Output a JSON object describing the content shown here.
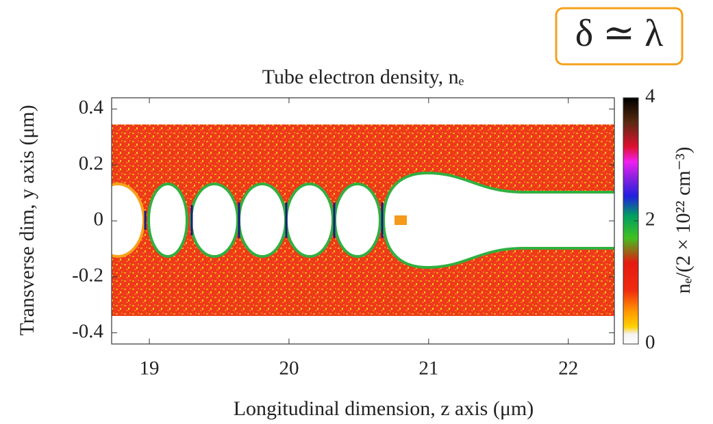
{
  "chart_data": {
    "type": "heatmap",
    "title": "Tube electron density, nₑ",
    "x_label": "Longitudinal dimension, z axis (μm)",
    "y_label": "Transverse dim, y axis (μm)",
    "xlim": [
      18.73,
      22.33
    ],
    "xticks": [
      19,
      20,
      21,
      22
    ],
    "ylim": [
      -0.44,
      0.44
    ],
    "yticks": [
      0.4,
      0.2,
      0,
      -0.2,
      -0.4
    ],
    "colorbar": {
      "label": "nₑ/(2 × 10²² cm⁻³)",
      "lim": [
        0,
        4
      ],
      "ticks": [
        0,
        2,
        4
      ]
    },
    "annotation": "δ ≃ λ"
  }
}
